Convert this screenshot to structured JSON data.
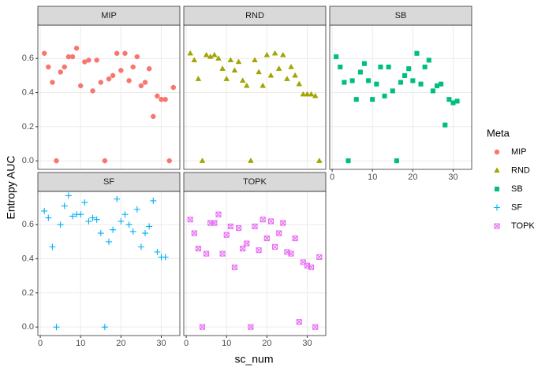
{
  "chart_data": {
    "type": "scatter",
    "xlabel": "sc_num",
    "ylabel": "Entropy AUC",
    "legend_title": "Meta",
    "xlim": [
      -0.6,
      34.6
    ],
    "ylim": [
      -0.05,
      0.795
    ],
    "xticks": [
      0,
      10,
      20,
      30
    ],
    "yticks": [
      {
        "value": 0,
        "label": "0.0"
      },
      0.2,
      0.4,
      0.6
    ],
    "grid": true,
    "series": [
      {
        "name": "MIP",
        "color": "#F8766D",
        "shape": "circle",
        "x": [
          1,
          2,
          3,
          4,
          5,
          6,
          7,
          8,
          9,
          10,
          11,
          12,
          13,
          14,
          15,
          16,
          17,
          18,
          19,
          20,
          21,
          22,
          23,
          24,
          25,
          26,
          27,
          28,
          29,
          30,
          31,
          32,
          33
        ],
        "values": [
          0.63,
          0.55,
          0.46,
          0.0,
          0.52,
          0.55,
          0.61,
          0.61,
          0.66,
          0.44,
          0.58,
          0.59,
          0.41,
          0.59,
          0.46,
          0.0,
          0.48,
          0.5,
          0.63,
          0.53,
          0.63,
          0.47,
          0.55,
          0.61,
          0.44,
          0.46,
          0.54,
          0.26,
          0.38,
          0.36,
          0.36,
          0.0,
          0.43
        ]
      },
      {
        "name": "RND",
        "color": "#A3A500",
        "shape": "triangle",
        "x": [
          1,
          2,
          3,
          4,
          5,
          6,
          7,
          8,
          9,
          10,
          11,
          12,
          13,
          14,
          15,
          16,
          17,
          18,
          19,
          20,
          21,
          22,
          23,
          24,
          25,
          26,
          27,
          28,
          29,
          30,
          31,
          32,
          33
        ],
        "values": [
          0.63,
          0.59,
          0.48,
          0.0,
          0.62,
          0.61,
          0.62,
          0.6,
          0.54,
          0.48,
          0.59,
          0.53,
          0.58,
          0.47,
          0.44,
          0.0,
          0.59,
          0.52,
          0.44,
          0.62,
          0.5,
          0.63,
          0.54,
          0.62,
          0.48,
          0.55,
          0.5,
          0.45,
          0.39,
          0.39,
          0.39,
          0.38,
          0.0
        ]
      },
      {
        "name": "SB",
        "color": "#00BF7D",
        "shape": "square",
        "x": [
          1,
          2,
          3,
          4,
          5,
          6,
          7,
          8,
          9,
          10,
          11,
          12,
          13,
          14,
          15,
          16,
          17,
          18,
          19,
          20,
          21,
          22,
          23,
          24,
          25,
          26,
          27,
          28,
          29,
          30,
          31
        ],
        "values": [
          0.61,
          0.55,
          0.46,
          0.0,
          0.47,
          0.36,
          0.52,
          0.57,
          0.47,
          0.36,
          0.45,
          0.55,
          0.38,
          0.55,
          0.41,
          0.0,
          0.46,
          0.5,
          0.54,
          0.47,
          0.63,
          0.45,
          0.55,
          0.59,
          0.41,
          0.44,
          0.45,
          0.21,
          0.36,
          0.34,
          0.35
        ]
      },
      {
        "name": "SF",
        "color": "#00B0F6",
        "shape": "plus",
        "x": [
          1,
          2,
          3,
          4,
          5,
          6,
          7,
          8,
          9,
          10,
          11,
          12,
          13,
          14,
          15,
          16,
          17,
          18,
          19,
          20,
          21,
          22,
          23,
          24,
          25,
          26,
          27,
          28,
          29,
          30,
          31
        ],
        "values": [
          0.68,
          0.64,
          0.47,
          0.0,
          0.6,
          0.71,
          0.77,
          0.65,
          0.66,
          0.66,
          0.73,
          0.62,
          0.64,
          0.63,
          0.55,
          0.0,
          0.5,
          0.57,
          0.75,
          0.62,
          0.66,
          0.6,
          0.56,
          0.69,
          0.47,
          0.55,
          0.59,
          0.74,
          0.44,
          0.41,
          0.41
        ]
      },
      {
        "name": "TOPK",
        "color": "#E76BF3",
        "shape": "boxx",
        "x": [
          1,
          2,
          3,
          4,
          5,
          6,
          7,
          8,
          9,
          10,
          11,
          12,
          13,
          14,
          15,
          16,
          17,
          18,
          19,
          20,
          21,
          22,
          23,
          24,
          25,
          26,
          27,
          28,
          29,
          30,
          31,
          32,
          33
        ],
        "values": [
          0.63,
          0.55,
          0.46,
          0.0,
          0.43,
          0.61,
          0.61,
          0.66,
          0.43,
          0.54,
          0.59,
          0.35,
          0.58,
          0.46,
          0.49,
          0.0,
          0.59,
          0.45,
          0.63,
          0.52,
          0.62,
          0.47,
          0.55,
          0.61,
          0.44,
          0.43,
          0.52,
          0.03,
          0.38,
          0.36,
          0.35,
          0.0,
          0.41
        ]
      }
    ]
  }
}
